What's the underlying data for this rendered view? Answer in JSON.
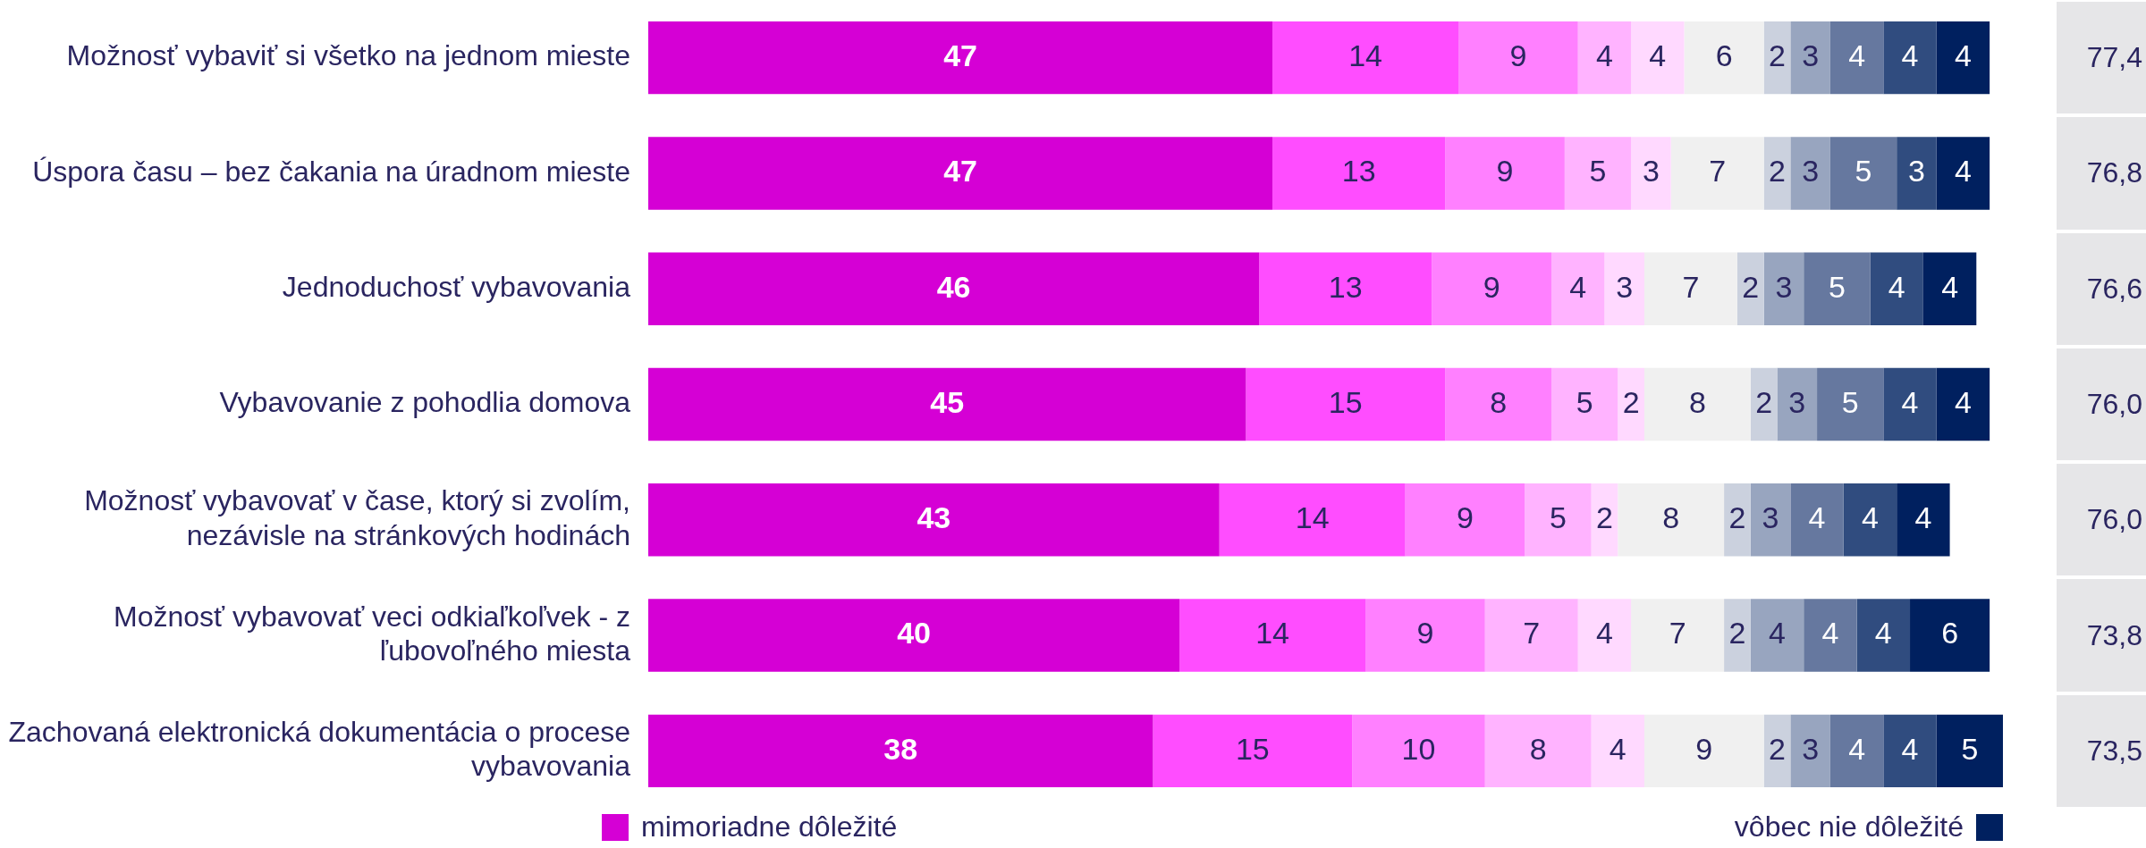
{
  "chart_data": {
    "type": "bar",
    "orientation": "horizontal",
    "stacked": true,
    "data_labels": true,
    "legend": "bottom",
    "grid": false,
    "categories": [
      "Možnosť vybaviť si všetko na jednom mieste",
      "Úspora času – bez čakania na úradnom mieste",
      "Jednoduchosť vybavovania",
      "Vybavovanie z pohodlia domova",
      "Možnosť vybavovať v čase, ktorý si zvolím, nezávisle na stránkových hodinách",
      "Možnosť vybavovať veci odkiaľkoľvek - z ľubovoľného miesta",
      "Zachovaná elektronická dokumentácia o procese vybavovania"
    ],
    "series": [
      {
        "name": "mimoriadne dôležité",
        "color": "#d500d5",
        "values": [
          47,
          47,
          46,
          45,
          43,
          40,
          38
        ]
      },
      {
        "color": "#ff4dff",
        "values": [
          14,
          13,
          13,
          15,
          14,
          14,
          15
        ]
      },
      {
        "color": "#ff80ff",
        "values": [
          9,
          9,
          9,
          8,
          9,
          9,
          10
        ]
      },
      {
        "color": "#ffb3ff",
        "values": [
          4,
          5,
          4,
          5,
          5,
          7,
          8
        ]
      },
      {
        "color": "#ffd9ff",
        "values": [
          4,
          3,
          3,
          2,
          2,
          4,
          4
        ]
      },
      {
        "color": "#f0f0f0",
        "values": [
          6,
          7,
          7,
          8,
          8,
          7,
          9
        ]
      },
      {
        "color": "#cbd1de",
        "values": [
          2,
          2,
          2,
          2,
          2,
          2,
          2
        ]
      },
      {
        "color": "#98a5bf",
        "values": [
          3,
          3,
          3,
          3,
          3,
          4,
          3
        ]
      },
      {
        "color": "#66789f",
        "values": [
          4,
          5,
          5,
          5,
          4,
          4,
          4
        ]
      },
      {
        "color": "#304c7f",
        "values": [
          4,
          3,
          4,
          4,
          4,
          4,
          4
        ]
      },
      {
        "name": "vôbec nie dôležité",
        "color": "#00205f",
        "values": [
          4,
          4,
          4,
          4,
          4,
          6,
          5
        ]
      }
    ],
    "annotations": [
      "77,4",
      "76,8",
      "76,6",
      "76,0",
      "76,0",
      "73,8",
      "73,5"
    ]
  }
}
